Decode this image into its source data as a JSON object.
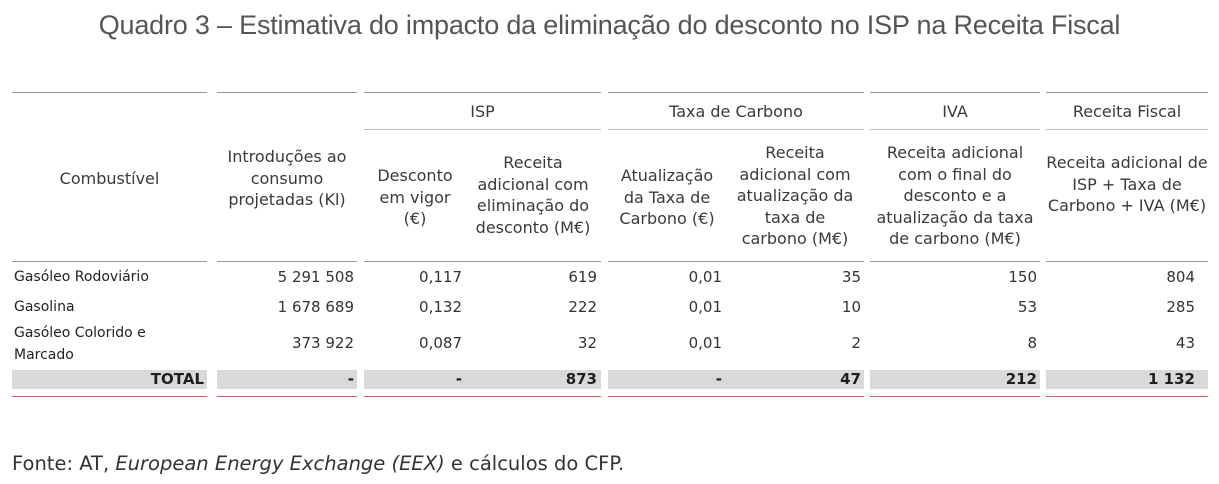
{
  "title": "Quadro 3 – Estimativa do impacto da eliminação do desconto no ISP na Receita Fiscal",
  "groups": {
    "isp": "ISP",
    "carbono": "Taxa de Carbono",
    "iva": "IVA",
    "receita": "Receita Fiscal"
  },
  "headers": {
    "combustivel": "Combustível",
    "introducoes": "Introduções ao consumo projetadas (Kl)",
    "desconto": "Desconto em vigor (€)",
    "receita_isp": "Receita adicional com eliminação do desconto (M€)",
    "atualizacao": "Atualização da Taxa de Carbono (€)",
    "receita_carbono": "Receita adicional com atualização da taxa de carbono (M€)",
    "receita_iva": "Receita adicional com o final do desconto e a atualização da taxa de carbono (M€)",
    "receita_total": "Receita adicional de ISP + Taxa de Carbono + IVA (M€)"
  },
  "rows": [
    {
      "label": "Gasóleo Rodoviário",
      "introducoes": "5 291 508",
      "desconto": "0,117",
      "receita_isp": "619",
      "atualizacao": "0,01",
      "receita_carbono": "35",
      "receita_iva": "150",
      "receita_total": "804"
    },
    {
      "label": "Gasolina",
      "introducoes": "1 678 689",
      "desconto": "0,132",
      "receita_isp": "222",
      "atualizacao": "0,01",
      "receita_carbono": "10",
      "receita_iva": "53",
      "receita_total": "285"
    },
    {
      "label": "Gasóleo Colorido e Marcado",
      "introducoes": "373 922",
      "desconto": "0,087",
      "receita_isp": "32",
      "atualizacao": "0,01",
      "receita_carbono": "2",
      "receita_iva": "8",
      "receita_total": "43"
    }
  ],
  "total": {
    "label": "TOTAL",
    "introducoes": "-",
    "desconto": "-",
    "receita_isp": "873",
    "atualizacao": "-",
    "receita_carbono": "47",
    "receita_iva": "212",
    "receita_total": "1 132"
  },
  "source": {
    "prefix": "Fonte: AT, ",
    "italic": "European Energy Exchange (EEX)",
    "suffix": " e cálculos do CFP."
  }
}
